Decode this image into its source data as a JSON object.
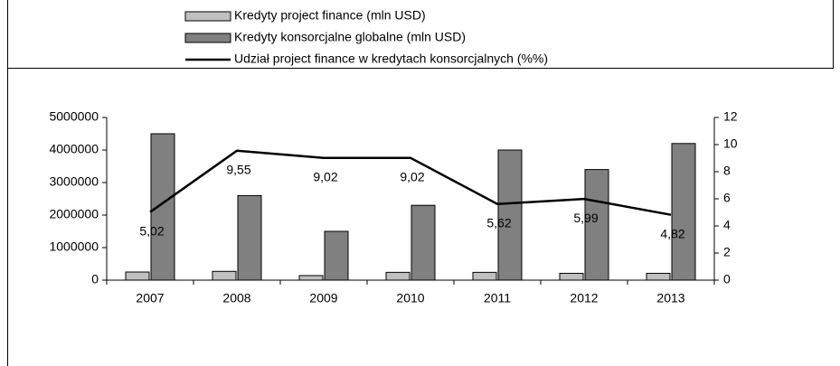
{
  "chart_data": {
    "type": "bar",
    "categories": [
      "2007",
      "2008",
      "2009",
      "2010",
      "2011",
      "2012",
      "2013"
    ],
    "series": [
      {
        "name": "Kredyty project finance (mln USD)",
        "color": "#c0c0c0",
        "values": [
          250000,
          270000,
          140000,
          240000,
          240000,
          210000,
          210000
        ]
      },
      {
        "name": "Kredyty konsorcjalne globalne (mln USD)",
        "color": "#808080",
        "values": [
          4500000,
          2600000,
          1500000,
          2300000,
          4000000,
          3400000,
          4200000
        ]
      },
      {
        "name": "Udział project finance w kredytach konsorcjalnych (%%)",
        "color": "#000000",
        "type": "line",
        "axis": "y2",
        "values": [
          5.02,
          9.55,
          9.02,
          9.02,
          5.62,
          5.99,
          4.82
        ],
        "value_labels": [
          "5,02",
          "9,55",
          "9,02",
          "9,02",
          "5,62",
          "5,99",
          "4,82"
        ]
      }
    ],
    "ylim": [
      0,
      5000000
    ],
    "yticks": [
      0,
      1000000,
      2000000,
      3000000,
      4000000,
      5000000
    ],
    "y2lim": [
      0,
      12
    ],
    "y2ticks": [
      0,
      2,
      4,
      6,
      8,
      10,
      12
    ],
    "legend": "top"
  }
}
